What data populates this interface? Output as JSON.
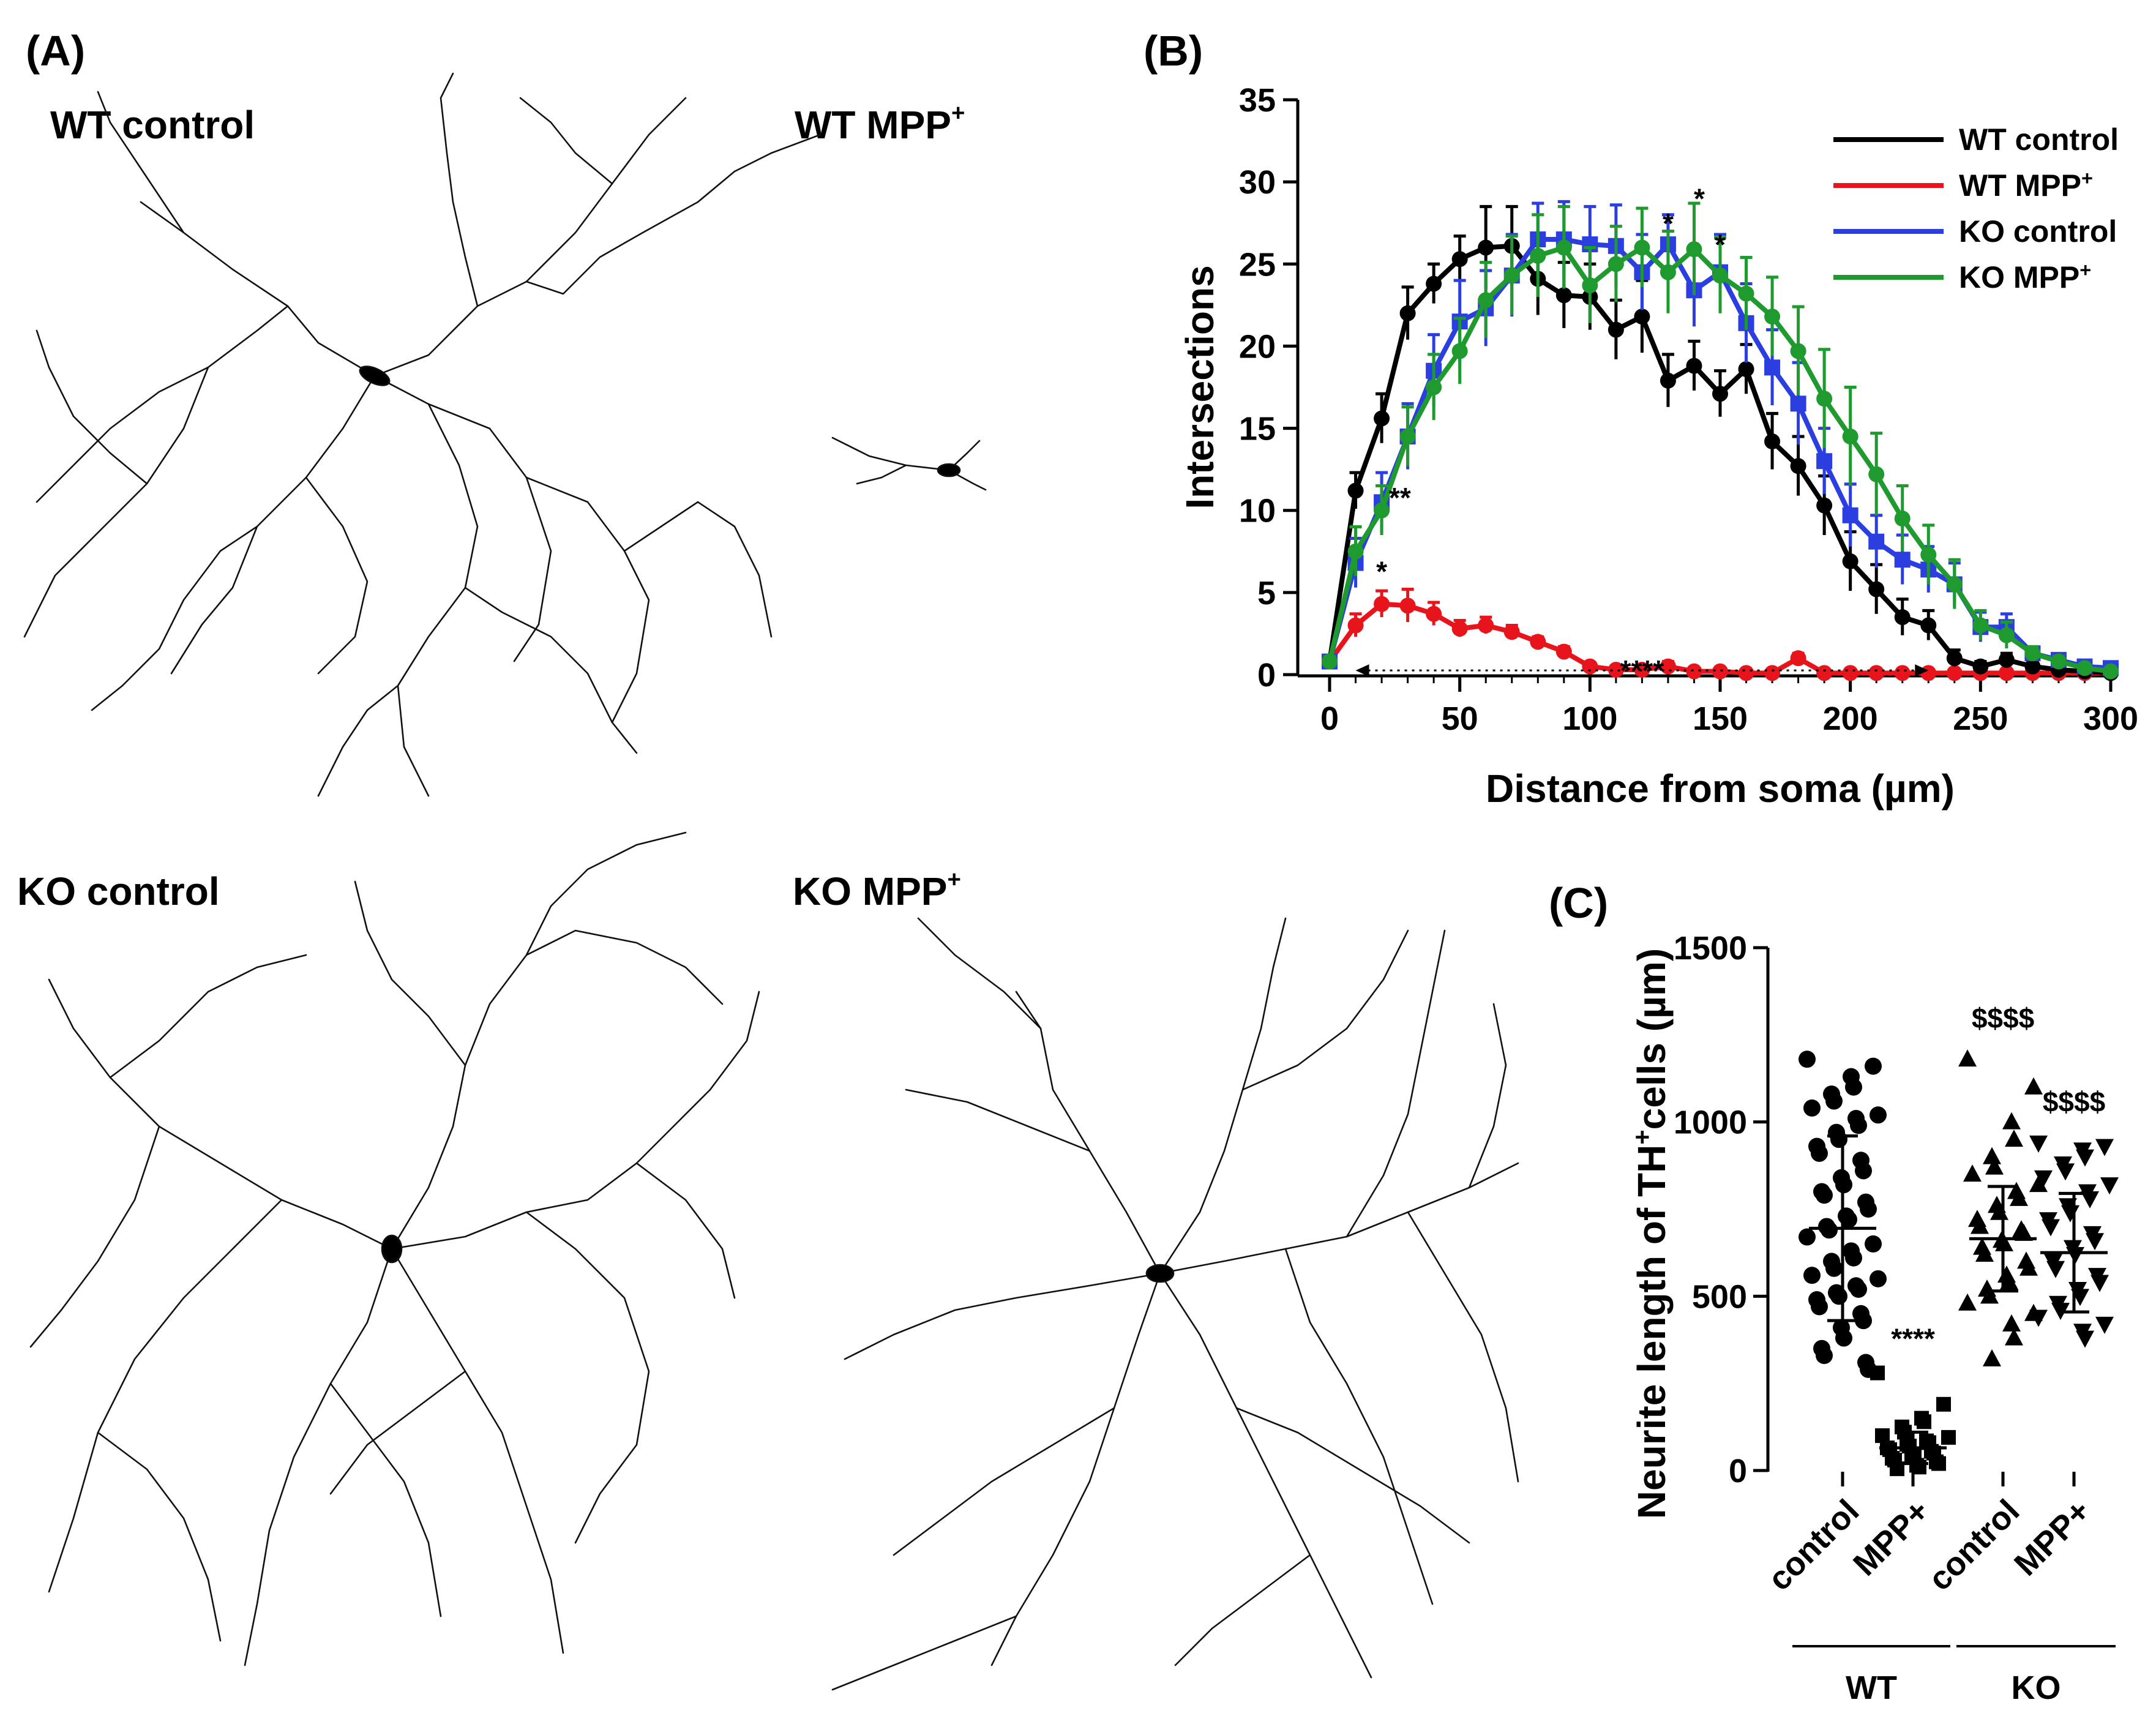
{
  "panels": {
    "a": {
      "label": "(A)"
    },
    "b": {
      "label": "(B)"
    },
    "c": {
      "label": "(C)"
    }
  },
  "micrographs": [
    {
      "name": "WT control",
      "sup": ""
    },
    {
      "name": "WT MPP",
      "sup": "+"
    },
    {
      "name": "KO control",
      "sup": ""
    },
    {
      "name": "KO MPP",
      "sup": "+"
    }
  ],
  "chart_data": [
    {
      "type": "line",
      "xlabel": "Distance from soma (µm)",
      "ylabel": "Intersections",
      "xlim": [
        0,
        300
      ],
      "ylim": [
        0,
        35
      ],
      "xticks": [
        0,
        50,
        100,
        150,
        200,
        250,
        300
      ],
      "yticks": [
        0,
        5,
        10,
        15,
        20,
        25,
        30,
        35
      ],
      "x": [
        0,
        10,
        20,
        30,
        40,
        50,
        60,
        70,
        80,
        90,
        100,
        110,
        120,
        130,
        140,
        150,
        160,
        170,
        180,
        190,
        200,
        210,
        220,
        230,
        240,
        250,
        260,
        270,
        280,
        290,
        300
      ],
      "legend_position": "top-right",
      "series": [
        {
          "name": "WT control",
          "sup": "",
          "color": "#000000",
          "marker": "circle",
          "values": [
            0.8,
            11.2,
            15.6,
            22,
            23.8,
            25.3,
            26,
            26.1,
            24.1,
            23.1,
            23,
            21,
            21.8,
            17.9,
            18.8,
            17.1,
            18.6,
            14.2,
            12.7,
            10.3,
            6.9,
            5.2,
            3.5,
            3.0,
            1.0,
            0.5,
            0.9,
            0.5,
            0.3,
            0.2,
            0.1
          ],
          "errors": [
            0.3,
            1.1,
            1.5,
            1.6,
            1.2,
            1.4,
            2.5,
            2.4,
            2.2,
            2.0,
            2.0,
            1.8,
            2.2,
            1.6,
            1.5,
            1.4,
            1.5,
            1.7,
            1.8,
            1.8,
            1.8,
            1.5,
            1.1,
            0.9,
            0.5,
            0.3,
            0.4,
            0.3,
            0.2,
            0.1,
            0.1
          ]
        },
        {
          "name": "WT MPP",
          "sup": "+",
          "color": "#e8141c",
          "marker": "circle",
          "values": [
            0.8,
            3.0,
            4.3,
            4.2,
            3.7,
            2.8,
            3.0,
            2.6,
            2.0,
            1.4,
            0.5,
            0.3,
            0.3,
            0.5,
            0.2,
            0.2,
            0.1,
            0.1,
            1.0,
            0.1,
            0.1,
            0.1,
            0.1,
            0.1,
            0.1,
            0.1,
            0.1,
            0.1,
            0.1,
            0.1,
            0.1
          ],
          "errors": [
            0.2,
            0.7,
            0.8,
            1.0,
            0.7,
            0.5,
            0.5,
            0.4,
            0.3,
            0.3,
            0.2,
            0.2,
            0.2,
            0.3,
            0.1,
            0.1,
            0.1,
            0.1,
            0.3,
            0.1,
            0.1,
            0.1,
            0.1,
            0.1,
            0.1,
            0.1,
            0.1,
            0.1,
            0.1,
            0.1,
            0.1
          ]
        },
        {
          "name": "KO control",
          "sup": "",
          "color": "#2b3fe0",
          "marker": "square",
          "values": [
            0.8,
            6.8,
            10.5,
            14.5,
            18.5,
            21.5,
            22.3,
            24.3,
            26.5,
            26.5,
            26.2,
            26.1,
            24.5,
            26.2,
            23.4,
            24.5,
            21.4,
            18.7,
            16.5,
            13,
            9.7,
            8.1,
            7,
            6.4,
            5.5,
            2.9,
            2.9,
            1.3,
            0.9,
            0.5,
            0.4
          ],
          "errors": [
            0.3,
            1.5,
            1.8,
            2.0,
            2.2,
            2.5,
            2.3,
            2.5,
            2.2,
            2.3,
            2.3,
            2.5,
            2.3,
            1.8,
            2.2,
            2.3,
            2.4,
            2.3,
            2.5,
            2.0,
            1.9,
            1.6,
            1.5,
            1.4,
            1.3,
            0.9,
            0.8,
            0.4,
            0.3,
            0.2,
            0.2
          ]
        },
        {
          "name": "KO MPP",
          "sup": "+",
          "color": "#1f9a2e",
          "marker": "circle",
          "values": [
            0.8,
            7.5,
            10,
            14.5,
            17.5,
            19.7,
            22.8,
            24.3,
            25.5,
            26,
            23.7,
            25,
            26,
            24.5,
            25.9,
            24.3,
            23.2,
            21.8,
            19.7,
            16.8,
            14.5,
            12.2,
            9.5,
            7.3,
            5.5,
            3.0,
            2.4,
            1.3,
            0.8,
            0.4,
            0.2
          ],
          "errors": [
            0.3,
            1.5,
            1.5,
            1.8,
            2.0,
            2.0,
            2.3,
            2.4,
            2.5,
            2.5,
            2.3,
            2.3,
            2.4,
            2.5,
            2.8,
            2.3,
            2.2,
            2.4,
            2.7,
            3.0,
            3.0,
            2.5,
            2.0,
            1.8,
            1.5,
            0.9,
            0.8,
            0.4,
            0.3,
            0.2,
            0.2
          ]
        }
      ],
      "annotations": [
        {
          "text": "*",
          "x": 20,
          "y": 6.8
        },
        {
          "text": "**",
          "x": 27,
          "y": 11.3
        },
        {
          "text": "*",
          "x": 130,
          "y": 28.0
        },
        {
          "text": "*",
          "x": 142,
          "y": 29.5
        },
        {
          "text": "*",
          "x": 150,
          "y": 26.7
        },
        {
          "text": "****",
          "x": 120,
          "y": 1.0,
          "span": [
            10,
            230
          ]
        }
      ]
    },
    {
      "type": "scatter",
      "ylabel": "Neurite length of TH",
      "ylabel_sup": "+",
      "ylabel_tail": "cells (µm)",
      "ylim": [
        0,
        1500
      ],
      "yticks": [
        0,
        500,
        1000,
        1500
      ],
      "categories": [
        "control",
        "MPP+",
        "control",
        "MPP+"
      ],
      "groups": [
        "WT",
        "KO"
      ],
      "series": [
        {
          "group": "WT",
          "name": "control",
          "marker": "circle",
          "mean": 695,
          "sd": 265,
          "values": [
            1180,
            1160,
            1130,
            1100,
            1080,
            1060,
            1040,
            1020,
            1010,
            990,
            970,
            950,
            930,
            910,
            890,
            860,
            840,
            820,
            800,
            790,
            770,
            750,
            730,
            720,
            700,
            690,
            670,
            650,
            630,
            610,
            600,
            580,
            560,
            550,
            530,
            520,
            510,
            500,
            490,
            470,
            450,
            430,
            410,
            380,
            350,
            330,
            310,
            290
          ]
        },
        {
          "group": "WT",
          "name": "MPP+",
          "marker": "square",
          "mean": 65,
          "sd": 45,
          "values": [
            280,
            190,
            150,
            140,
            125,
            110,
            100,
            95,
            85,
            80,
            75,
            70,
            65,
            60,
            55,
            50,
            45,
            40,
            35,
            30,
            25,
            20,
            15,
            10,
            5
          ]
        },
        {
          "group": "KO",
          "name": "control",
          "marker": "triangle-up",
          "mean": 665,
          "sd": 150,
          "values": [
            1180,
            1100,
            1000,
            950,
            900,
            870,
            850,
            820,
            800,
            780,
            760,
            740,
            720,
            700,
            690,
            680,
            660,
            650,
            640,
            620,
            600,
            580,
            560,
            540,
            520,
            500,
            480,
            450,
            420,
            380,
            320
          ]
        },
        {
          "group": "KO",
          "name": "MPP+",
          "marker": "triangle-down",
          "mean": 625,
          "sd": 170,
          "values": [
            940,
            930,
            920,
            900,
            880,
            860,
            840,
            820,
            800,
            780,
            760,
            740,
            720,
            700,
            680,
            660,
            640,
            620,
            600,
            580,
            560,
            540,
            520,
            500,
            480,
            460,
            440,
            420,
            400,
            380
          ]
        }
      ],
      "annotations": [
        {
          "text": "****",
          "category": 1,
          "y": 350
        },
        {
          "text": "$$$$",
          "category": 2,
          "y": 1270
        },
        {
          "text": "$$$$",
          "category": 3,
          "y": 1030
        }
      ]
    }
  ]
}
